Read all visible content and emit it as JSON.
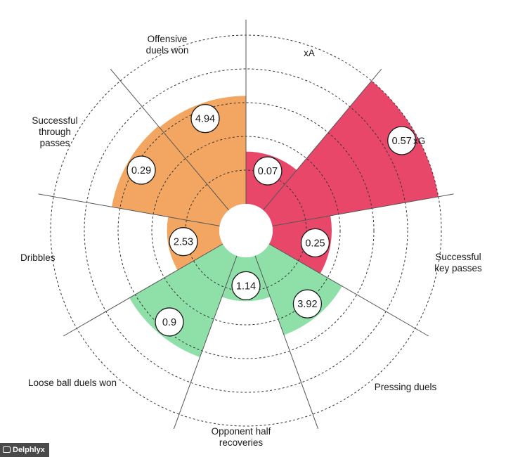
{
  "chart_data": {
    "type": "polar-area",
    "metrics": [
      {
        "label": "xA",
        "value": "0.07",
        "level": 1.55,
        "color": "#e8476a"
      },
      {
        "label": "xG",
        "value": "0.57",
        "level": 5.0,
        "color": "#e8476a"
      },
      {
        "label": "Successful key passes",
        "value": "0.25",
        "level": 1.75,
        "color": "#e8476a"
      },
      {
        "label": "Pressing duels",
        "value": "3.92",
        "level": 2.5,
        "color": "#8ee0a8"
      },
      {
        "label": "Opponent half recoveries",
        "value": "1.14",
        "level": 1.3,
        "color": "#8ee0a8"
      },
      {
        "label": "Loose ball duels won",
        "value": "0.9",
        "level": 3.2,
        "color": "#8ee0a8"
      },
      {
        "label": "Dribbles",
        "value": "2.53",
        "level": 1.55,
        "color": "#f2a661"
      },
      {
        "label": "Successful through passes",
        "value": "0.29",
        "level": 3.25,
        "color": "#f2a661"
      },
      {
        "label": "Offensive duels won",
        "value": "4.94",
        "level": 3.2,
        "color": "#f2a661"
      }
    ],
    "rings": 5,
    "level_max": 5,
    "grid": true
  },
  "labels": {
    "offensive_duels_won": [
      "Offensive",
      "duels won"
    ],
    "xa": "xA",
    "xg": "xG",
    "successful_through_passes": [
      "Successful",
      "through",
      "passes"
    ],
    "successful_key_passes": [
      "Successful",
      "key passes"
    ],
    "dribbles": "Dribbles",
    "pressing_duels": "Pressing duels",
    "loose_ball_duels_won": "Loose ball duels won",
    "opponent_half_recoveries": [
      "Opponent half",
      "recoveries"
    ]
  },
  "credit": "Delphlyx"
}
